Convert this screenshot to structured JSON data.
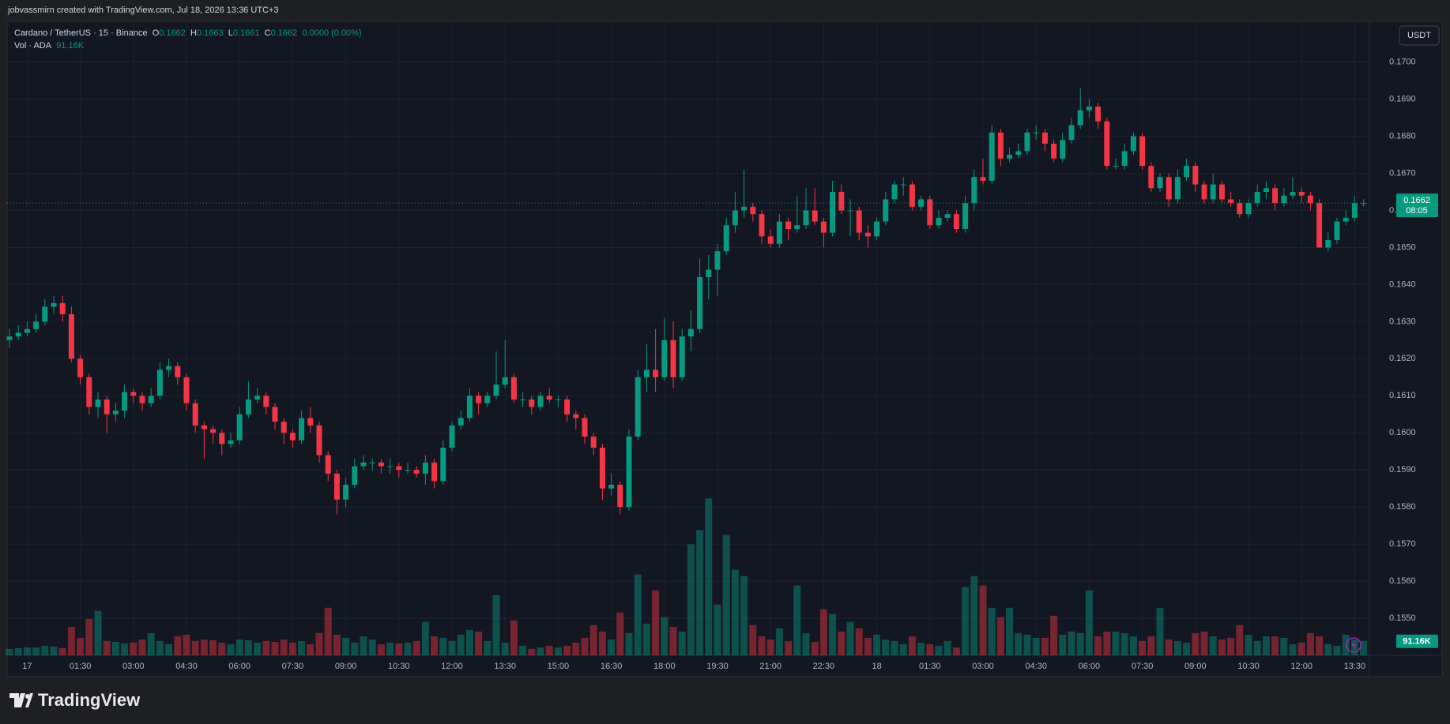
{
  "attribution": "jobvassmirn created with TradingView.com, Jul 18, 2026 13:36 UTC+3",
  "brand": "TradingView",
  "chart_data": {
    "type": "candlestick",
    "title": "Cardano / TetherUS · 15 · Binance",
    "ohlc_keys": [
      "O",
      "H",
      "L",
      "C"
    ],
    "change": "0.0000 (0.00%)",
    "volume_title": "Vol · ADA",
    "volume_value_label": "91.16K",
    "currency": "USDT",
    "countdown": "08:05",
    "up_color": "#089981",
    "down_color": "#f23645",
    "ylim": [
      0.154,
      0.1711
    ],
    "yticks": [
      {
        "value": 0.155,
        "label": "0.1550"
      },
      {
        "value": 0.156,
        "label": "0.1560"
      },
      {
        "value": 0.157,
        "label": "0.1570"
      },
      {
        "value": 0.158,
        "label": "0.1580"
      },
      {
        "value": 0.159,
        "label": "0.1590"
      },
      {
        "value": 0.16,
        "label": "0.1600"
      },
      {
        "value": 0.161,
        "label": "0.1610"
      },
      {
        "value": 0.162,
        "label": "0.1620"
      },
      {
        "value": 0.163,
        "label": "0.1630"
      },
      {
        "value": 0.164,
        "label": "0.1640"
      },
      {
        "value": 0.165,
        "label": "0.1650"
      },
      {
        "value": 0.166,
        "label": "0.1660"
      },
      {
        "value": 0.167,
        "label": "0.1670"
      },
      {
        "value": 0.168,
        "label": "0.1680"
      },
      {
        "value": 0.169,
        "label": "0.1690"
      },
      {
        "value": 0.17,
        "label": "0.1700"
      }
    ],
    "y2lim": [
      0,
      4000
    ],
    "xticks": [
      {
        "value": 2,
        "label": "17"
      },
      {
        "value": 8,
        "label": "01:30"
      },
      {
        "value": 14,
        "label": "03:00"
      },
      {
        "value": 20,
        "label": "04:30"
      },
      {
        "value": 26,
        "label": "06:00"
      },
      {
        "value": 32,
        "label": "07:30"
      },
      {
        "value": 38,
        "label": "09:00"
      },
      {
        "value": 44,
        "label": "10:30"
      },
      {
        "value": 50,
        "label": "12:00"
      },
      {
        "value": 56,
        "label": "13:30"
      },
      {
        "value": 62,
        "label": "15:00"
      },
      {
        "value": 68,
        "label": "16:30"
      },
      {
        "value": 74,
        "label": "18:00"
      },
      {
        "value": 80,
        "label": "19:30"
      },
      {
        "value": 86,
        "label": "21:00"
      },
      {
        "value": 92,
        "label": "22:30"
      },
      {
        "value": 98,
        "label": "18"
      },
      {
        "value": 104,
        "label": "01:30"
      },
      {
        "value": 110,
        "label": "03:00"
      },
      {
        "value": 116,
        "label": "04:30"
      },
      {
        "value": 122,
        "label": "06:00"
      },
      {
        "value": 128,
        "label": "07:30"
      },
      {
        "value": 134,
        "label": "09:00"
      },
      {
        "value": 140,
        "label": "10:30"
      },
      {
        "value": 146,
        "label": "12:00"
      },
      {
        "value": 152,
        "label": "13:30"
      }
    ],
    "candles": [
      [
        0.1625,
        0.1628,
        0.1623,
        0.1626
      ],
      [
        0.1626,
        0.1629,
        0.1625,
        0.1627
      ],
      [
        0.1627,
        0.163,
        0.1626,
        0.1628
      ],
      [
        0.1628,
        0.1632,
        0.1627,
        0.163
      ],
      [
        0.163,
        0.1636,
        0.1629,
        0.1634
      ],
      [
        0.1634,
        0.1637,
        0.1632,
        0.1635
      ],
      [
        0.1635,
        0.1637,
        0.163,
        0.1632
      ],
      [
        0.1632,
        0.1634,
        0.1619,
        0.162
      ],
      [
        0.162,
        0.1621,
        0.1613,
        0.1615
      ],
      [
        0.1615,
        0.1616,
        0.1605,
        0.1607
      ],
      [
        0.1607,
        0.1611,
        0.1604,
        0.1609
      ],
      [
        0.1609,
        0.161,
        0.16,
        0.1605
      ],
      [
        0.1605,
        0.1608,
        0.1603,
        0.1606
      ],
      [
        0.1606,
        0.1613,
        0.1604,
        0.1611
      ],
      [
        0.1611,
        0.1612,
        0.1608,
        0.161
      ],
      [
        0.161,
        0.1611,
        0.1606,
        0.1608
      ],
      [
        0.1608,
        0.1612,
        0.1607,
        0.161
      ],
      [
        0.161,
        0.1619,
        0.1609,
        0.1617
      ],
      [
        0.1617,
        0.162,
        0.1615,
        0.1618
      ],
      [
        0.1618,
        0.1619,
        0.1613,
        0.1615
      ],
      [
        0.1615,
        0.1616,
        0.1606,
        0.1608
      ],
      [
        0.1608,
        0.1609,
        0.16,
        0.1602
      ],
      [
        0.1602,
        0.1603,
        0.1593,
        0.1601
      ],
      [
        0.1601,
        0.1602,
        0.1597,
        0.16
      ],
      [
        0.16,
        0.1601,
        0.1594,
        0.1597
      ],
      [
        0.1597,
        0.16,
        0.1596,
        0.1598
      ],
      [
        0.1598,
        0.1607,
        0.1597,
        0.1605
      ],
      [
        0.1605,
        0.1614,
        0.1604,
        0.1609
      ],
      [
        0.1609,
        0.1612,
        0.1608,
        0.161
      ],
      [
        0.161,
        0.1611,
        0.1605,
        0.1607
      ],
      [
        0.1607,
        0.1608,
        0.1601,
        0.1603
      ],
      [
        0.1603,
        0.1604,
        0.1597,
        0.16
      ],
      [
        0.16,
        0.1601,
        0.1596,
        0.1598
      ],
      [
        0.1598,
        0.1606,
        0.1597,
        0.1604
      ],
      [
        0.1604,
        0.1607,
        0.16,
        0.1602
      ],
      [
        0.1602,
        0.1603,
        0.1592,
        0.1594
      ],
      [
        0.1594,
        0.1595,
        0.1587,
        0.1589
      ],
      [
        0.1589,
        0.159,
        0.1578,
        0.1582
      ],
      [
        0.1582,
        0.1588,
        0.158,
        0.1586
      ],
      [
        0.1586,
        0.1593,
        0.1585,
        0.1591
      ],
      [
        0.1591,
        0.1594,
        0.159,
        0.1592
      ],
      [
        0.1592,
        0.1593,
        0.159,
        0.1592
      ],
      [
        0.1592,
        0.1593,
        0.1589,
        0.1591
      ],
      [
        0.1591,
        0.1593,
        0.1589,
        0.1591
      ],
      [
        0.1591,
        0.1592,
        0.1588,
        0.159
      ],
      [
        0.159,
        0.1592,
        0.1589,
        0.159
      ],
      [
        0.159,
        0.1591,
        0.1588,
        0.1589
      ],
      [
        0.1589,
        0.1594,
        0.1586,
        0.1592
      ],
      [
        0.1592,
        0.1593,
        0.1585,
        0.1587
      ],
      [
        0.1587,
        0.1598,
        0.1586,
        0.1596
      ],
      [
        0.1596,
        0.1603,
        0.1595,
        0.1602
      ],
      [
        0.1602,
        0.1606,
        0.1601,
        0.1604
      ],
      [
        0.1604,
        0.1612,
        0.1603,
        0.161
      ],
      [
        0.161,
        0.1611,
        0.1605,
        0.1608
      ],
      [
        0.1608,
        0.1611,
        0.1607,
        0.161
      ],
      [
        0.161,
        0.1622,
        0.1609,
        0.1613
      ],
      [
        0.1613,
        0.1625,
        0.1612,
        0.1615
      ],
      [
        0.1615,
        0.1616,
        0.1608,
        0.1609
      ],
      [
        0.1609,
        0.1611,
        0.1607,
        0.1609
      ],
      [
        0.1609,
        0.161,
        0.1605,
        0.1607
      ],
      [
        0.1607,
        0.1611,
        0.1606,
        0.161
      ],
      [
        0.161,
        0.1612,
        0.1608,
        0.1609
      ],
      [
        0.1609,
        0.161,
        0.1607,
        0.1609
      ],
      [
        0.1609,
        0.161,
        0.1603,
        0.1605
      ],
      [
        0.1605,
        0.1606,
        0.1601,
        0.1604
      ],
      [
        0.1604,
        0.1605,
        0.1597,
        0.1599
      ],
      [
        0.1599,
        0.16,
        0.1594,
        0.1596
      ],
      [
        0.1596,
        0.1597,
        0.1582,
        0.1585
      ],
      [
        0.1585,
        0.1589,
        0.1583,
        0.1586
      ],
      [
        0.1586,
        0.1587,
        0.1578,
        0.158
      ],
      [
        0.158,
        0.1601,
        0.1579,
        0.1599
      ],
      [
        0.1599,
        0.1617,
        0.1598,
        0.1615
      ],
      [
        0.1615,
        0.1624,
        0.1611,
        0.1617
      ],
      [
        0.1617,
        0.1628,
        0.1611,
        0.1615
      ],
      [
        0.1615,
        0.1631,
        0.1614,
        0.1625
      ],
      [
        0.1625,
        0.163,
        0.1612,
        0.1615
      ],
      [
        0.1615,
        0.1628,
        0.1614,
        0.1626
      ],
      [
        0.1626,
        0.1633,
        0.1622,
        0.1628
      ],
      [
        0.1628,
        0.1647,
        0.1627,
        0.1642
      ],
      [
        0.1642,
        0.1648,
        0.1636,
        0.1644
      ],
      [
        0.1644,
        0.1651,
        0.1637,
        0.1649
      ],
      [
        0.1649,
        0.1658,
        0.1648,
        0.1656
      ],
      [
        0.1656,
        0.1665,
        0.1654,
        0.166
      ],
      [
        0.166,
        0.1671,
        0.1658,
        0.1661
      ],
      [
        0.1661,
        0.1662,
        0.1657,
        0.1659
      ],
      [
        0.1659,
        0.166,
        0.1651,
        0.1653
      ],
      [
        0.1653,
        0.1655,
        0.165,
        0.1651
      ],
      [
        0.1651,
        0.1659,
        0.165,
        0.1657
      ],
      [
        0.1657,
        0.1658,
        0.1652,
        0.1655
      ],
      [
        0.1655,
        0.1664,
        0.1654,
        0.1656
      ],
      [
        0.1656,
        0.1666,
        0.1655,
        0.166
      ],
      [
        0.166,
        0.1666,
        0.1656,
        0.1657
      ],
      [
        0.1657,
        0.1658,
        0.165,
        0.1654
      ],
      [
        0.1654,
        0.1668,
        0.1653,
        0.1665
      ],
      [
        0.1665,
        0.1667,
        0.1659,
        0.166
      ],
      [
        0.166,
        0.1663,
        0.1653,
        0.166
      ],
      [
        0.166,
        0.1661,
        0.1652,
        0.1654
      ],
      [
        0.1654,
        0.1656,
        0.165,
        0.1653
      ],
      [
        0.1653,
        0.1658,
        0.1652,
        0.1657
      ],
      [
        0.1657,
        0.1665,
        0.1656,
        0.1663
      ],
      [
        0.1663,
        0.1668,
        0.1662,
        0.1667
      ],
      [
        0.1667,
        0.1669,
        0.1664,
        0.1667
      ],
      [
        0.1667,
        0.1668,
        0.166,
        0.1661
      ],
      [
        0.1661,
        0.1664,
        0.166,
        0.1663
      ],
      [
        0.1663,
        0.1664,
        0.1655,
        0.1656
      ],
      [
        0.1656,
        0.166,
        0.1655,
        0.1658
      ],
      [
        0.1658,
        0.166,
        0.1657,
        0.1659
      ],
      [
        0.1659,
        0.166,
        0.1654,
        0.1655
      ],
      [
        0.1655,
        0.1664,
        0.1654,
        0.1662
      ],
      [
        0.1662,
        0.1671,
        0.166,
        0.1669
      ],
      [
        0.1669,
        0.1674,
        0.1667,
        0.1668
      ],
      [
        0.1668,
        0.1683,
        0.1667,
        0.1681
      ],
      [
        0.1681,
        0.1682,
        0.1672,
        0.1674
      ],
      [
        0.1674,
        0.1677,
        0.1673,
        0.1675
      ],
      [
        0.1675,
        0.1678,
        0.1674,
        0.1676
      ],
      [
        0.1676,
        0.1682,
        0.1675,
        0.1681
      ],
      [
        0.1681,
        0.1683,
        0.1679,
        0.1681
      ],
      [
        0.1681,
        0.1682,
        0.1676,
        0.1678
      ],
      [
        0.1678,
        0.1679,
        0.1673,
        0.1674
      ],
      [
        0.1674,
        0.1681,
        0.1673,
        0.1679
      ],
      [
        0.1679,
        0.1685,
        0.1678,
        0.1683
      ],
      [
        0.1683,
        0.1693,
        0.1682,
        0.1687
      ],
      [
        0.1687,
        0.169,
        0.1685,
        0.1688
      ],
      [
        0.1688,
        0.1689,
        0.1682,
        0.1684
      ],
      [
        0.1684,
        0.1685,
        0.1671,
        0.1672
      ],
      [
        0.1672,
        0.1674,
        0.1671,
        0.1672
      ],
      [
        0.1672,
        0.1678,
        0.1671,
        0.1676
      ],
      [
        0.1676,
        0.1681,
        0.1675,
        0.168
      ],
      [
        0.168,
        0.1681,
        0.1671,
        0.1672
      ],
      [
        0.1672,
        0.1673,
        0.1665,
        0.1666
      ],
      [
        0.1666,
        0.167,
        0.1665,
        0.1669
      ],
      [
        0.1669,
        0.167,
        0.1661,
        0.1663
      ],
      [
        0.1663,
        0.1671,
        0.1662,
        0.1669
      ],
      [
        0.1669,
        0.1674,
        0.1668,
        0.1672
      ],
      [
        0.1672,
        0.1673,
        0.1665,
        0.1667
      ],
      [
        0.1667,
        0.1668,
        0.1662,
        0.1663
      ],
      [
        0.1663,
        0.167,
        0.1662,
        0.1667
      ],
      [
        0.1667,
        0.1668,
        0.1662,
        0.1663
      ],
      [
        0.1663,
        0.1665,
        0.1661,
        0.1662
      ],
      [
        0.1662,
        0.1663,
        0.1658,
        0.1659
      ],
      [
        0.1659,
        0.1663,
        0.1658,
        0.1662
      ],
      [
        0.1662,
        0.1667,
        0.1661,
        0.1665
      ],
      [
        0.1665,
        0.1668,
        0.1663,
        0.1666
      ],
      [
        0.1666,
        0.1667,
        0.166,
        0.1662
      ],
      [
        0.1662,
        0.1666,
        0.1661,
        0.1664
      ],
      [
        0.1664,
        0.1669,
        0.1663,
        0.1665
      ],
      [
        0.1665,
        0.1666,
        0.1662,
        0.1664
      ],
      [
        0.1664,
        0.1665,
        0.166,
        0.1662
      ],
      [
        0.1662,
        0.1663,
        0.165,
        0.165
      ],
      [
        0.165,
        0.1654,
        0.1649,
        0.1652
      ],
      [
        0.1652,
        0.1658,
        0.1651,
        0.1657
      ],
      [
        0.1657,
        0.166,
        0.1656,
        0.1658
      ],
      [
        0.1658,
        0.1664,
        0.1657,
        0.1662
      ],
      [
        0.1662,
        0.1663,
        0.1661,
        0.1662
      ]
    ],
    "volume": [
      40,
      45,
      50,
      50,
      60,
      55,
      45,
      180,
      110,
      230,
      280,
      90,
      85,
      75,
      80,
      100,
      140,
      90,
      70,
      120,
      130,
      90,
      100,
      95,
      80,
      70,
      100,
      95,
      80,
      90,
      85,
      100,
      80,
      90,
      70,
      140,
      300,
      130,
      110,
      80,
      120,
      100,
      70,
      80,
      75,
      80,
      90,
      210,
      120,
      110,
      90,
      130,
      160,
      150,
      90,
      380,
      80,
      220,
      60,
      40,
      50,
      60,
      50,
      60,
      80,
      110,
      190,
      150,
      100,
      270,
      140,
      510,
      200,
      410,
      240,
      180,
      150,
      700,
      790,
      990,
      320,
      760,
      540,
      500,
      190,
      120,
      100,
      170,
      90,
      440,
      140,
      85,
      290,
      260,
      150,
      210,
      170,
      110,
      130,
      100,
      90,
      70,
      120,
      80,
      70,
      60,
      90,
      50,
      430,
      500,
      440,
      300,
      240,
      300,
      140,
      130,
      110,
      110,
      250,
      130,
      150,
      140,
      410,
      120,
      150,
      150,
      140,
      120,
      90,
      120,
      300,
      100,
      90,
      80,
      140,
      150,
      120,
      100,
      110,
      190,
      130,
      90,
      120,
      120,
      110,
      70,
      80,
      140,
      120,
      70,
      60,
      130,
      100,
      91.16
    ]
  }
}
